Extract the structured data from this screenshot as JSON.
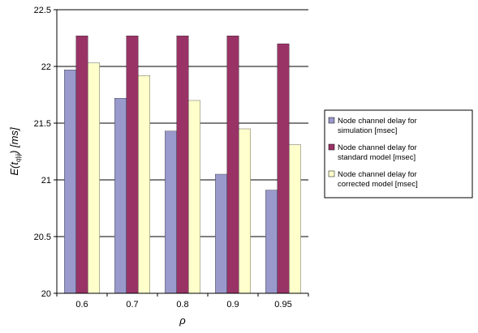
{
  "chart_data": {
    "type": "bar",
    "categories": [
      "0.6",
      "0.7",
      "0.8",
      "0.9",
      "0.95"
    ],
    "series": [
      {
        "name": "Node channel delay for simulation [msec]",
        "name_lines": [
          "Node channel delay for",
          "simulation [msec]"
        ],
        "color": "#9999CC",
        "values": [
          21.97,
          21.72,
          21.43,
          21.05,
          20.91
        ]
      },
      {
        "name": "Node channel delay for standard model [msec]",
        "name_lines": [
          "Node channel delay for",
          "standard model [msec]"
        ],
        "color": "#993366",
        "values": [
          22.27,
          22.27,
          22.27,
          22.27,
          22.2
        ]
      },
      {
        "name": "Node channel delay for corrected model [msec]",
        "name_lines": [
          "Node channel delay for",
          "corrected model [msec]"
        ],
        "color": "#FFFFCC",
        "values": [
          22.03,
          21.92,
          21.7,
          21.45,
          21.31
        ]
      }
    ],
    "xlabel": "ρ",
    "ylabel_main": "E(t",
    "ylabel_sub": "q|ij",
    "ylabel_tail": ") [ms]",
    "ylim": [
      20,
      22.5
    ],
    "yticks": [
      "20",
      "20.5",
      "21",
      "21.5",
      "22",
      "22.5"
    ],
    "grid": true,
    "legend_position": "right",
    "colors": {
      "axis": "#000000",
      "grid": "#000000",
      "bar_outline": "#000000"
    }
  }
}
